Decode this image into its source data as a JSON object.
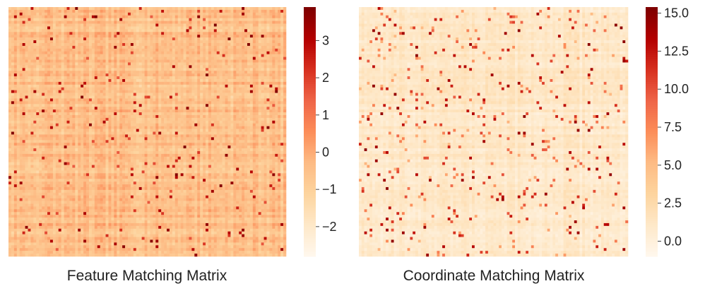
{
  "chart_data": [
    {
      "type": "heatmap",
      "xlabel": "Feature Matching Matrix",
      "ylabel": "",
      "grid_size": [
        100,
        90
      ],
      "colormap": "OrRd",
      "colorbar": {
        "range": [
          -2.8,
          3.9
        ],
        "ticks": [
          3,
          2,
          1,
          0,
          -1,
          -2
        ],
        "tick_labels": [
          "3",
          "2",
          "1",
          "0",
          "−1",
          "−2"
        ]
      },
      "value_distribution": {
        "typical": [
          -1.5,
          0.5
        ],
        "occasional_high": [
          1.5,
          3.9
        ]
      }
    },
    {
      "type": "heatmap",
      "xlabel": "Coordinate Matching Matrix",
      "ylabel": "",
      "grid_size": [
        100,
        90
      ],
      "colormap": "OrRd",
      "colorbar": {
        "range": [
          -1.0,
          15.4
        ],
        "ticks": [
          15.0,
          12.5,
          10.0,
          7.5,
          5.0,
          2.5,
          0.0
        ],
        "tick_labels": [
          "15.0",
          "12.5",
          "10.0",
          "7.5",
          "5.0",
          "2.5",
          "0.0"
        ]
      },
      "value_distribution": {
        "typical": [
          -0.5,
          2.5
        ],
        "occasional_high": [
          5,
          15
        ]
      }
    }
  ],
  "colors": {
    "colormap_stops": [
      "#fff7ec",
      "#fee8c8",
      "#fdd49e",
      "#fdbb84",
      "#fc8d59",
      "#ef6548",
      "#d7301f",
      "#b30000",
      "#7f0000"
    ]
  }
}
